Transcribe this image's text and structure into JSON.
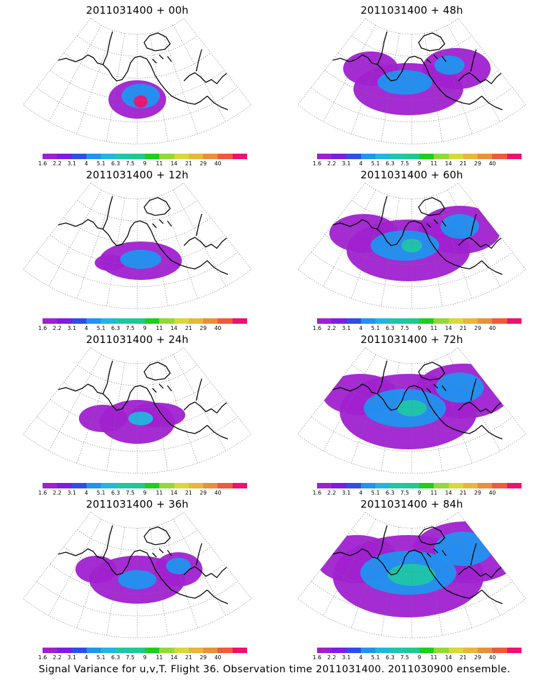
{
  "caption": "Signal Variance for u,v,T. Flight 36. Observation time 2011031400. 2011030900 ensemble.",
  "colorbar": {
    "labels": [
      "1.6",
      "2.2",
      "3.1",
      "4",
      "5.1",
      "6.3",
      "7.5",
      "9",
      "11",
      "14",
      "21",
      "29",
      "40"
    ],
    "colors": [
      "#a020d0",
      "#7d1be8",
      "#2f4de8",
      "#1f94f0",
      "#22b5de",
      "#1fc6a6",
      "#1ec98f",
      "#1ccf1c",
      "#91d83a",
      "#d8d83a",
      "#e8b63a",
      "#e8903a",
      "#f05a3a",
      "#f01070"
    ]
  },
  "panels": [
    {
      "title": "2011031400 + 00h",
      "level": 0
    },
    {
      "title": "2011031400 + 48h",
      "level": 4
    },
    {
      "title": "2011031400 + 12h",
      "level": 1
    },
    {
      "title": "2011031400 + 60h",
      "level": 5
    },
    {
      "title": "2011031400 + 24h",
      "level": 2
    },
    {
      "title": "2011031400 + 72h",
      "level": 6
    },
    {
      "title": "2011031400 + 36h",
      "level": 3
    },
    {
      "title": "2011031400 + 84h",
      "level": 7
    }
  ]
}
